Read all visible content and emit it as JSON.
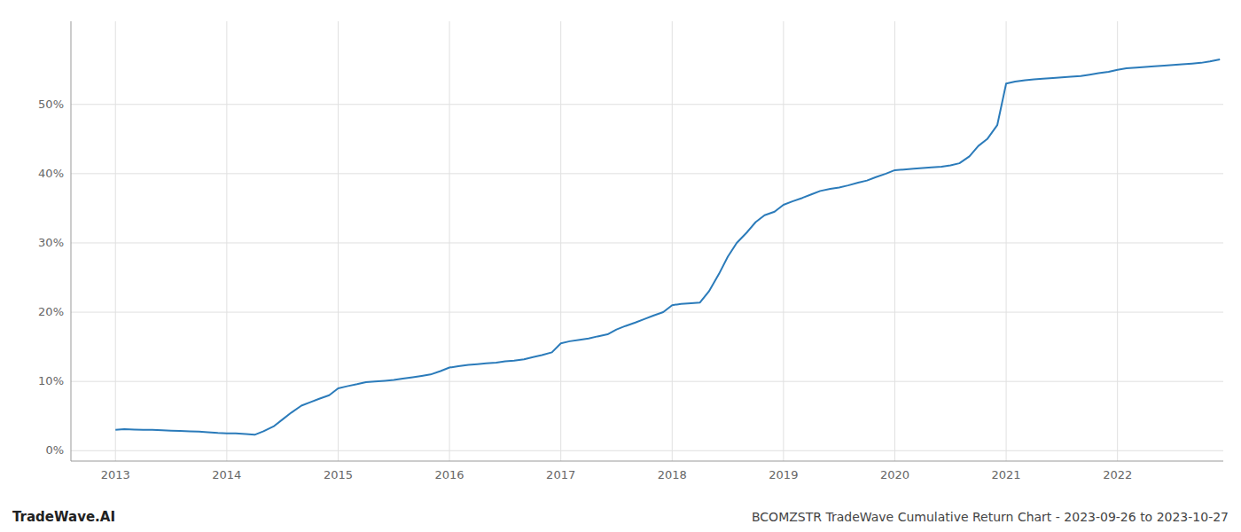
{
  "chart_data": {
    "type": "line",
    "title": "BCOMZSTR TradeWave Cumulative Return Chart - 2023-09-26 to 2023-10-27",
    "annotations": [
      "TradeWave.AI"
    ],
    "color": "#2b7bba",
    "grid": true,
    "x": [
      2013.0,
      2013.08,
      2013.17,
      2013.25,
      2013.33,
      2013.42,
      2013.5,
      2013.58,
      2013.67,
      2013.75,
      2013.83,
      2013.92,
      2014.0,
      2014.08,
      2014.17,
      2014.25,
      2014.33,
      2014.42,
      2014.5,
      2014.58,
      2014.67,
      2014.75,
      2014.83,
      2014.92,
      2015.0,
      2015.08,
      2015.17,
      2015.25,
      2015.33,
      2015.42,
      2015.5,
      2015.58,
      2015.67,
      2015.75,
      2015.83,
      2015.92,
      2016.0,
      2016.08,
      2016.17,
      2016.25,
      2016.33,
      2016.42,
      2016.5,
      2016.58,
      2016.67,
      2016.75,
      2016.83,
      2016.92,
      2017.0,
      2017.08,
      2017.17,
      2017.25,
      2017.33,
      2017.42,
      2017.5,
      2017.58,
      2017.67,
      2017.75,
      2017.83,
      2017.92,
      2018.0,
      2018.08,
      2018.17,
      2018.25,
      2018.33,
      2018.42,
      2018.5,
      2018.58,
      2018.67,
      2018.75,
      2018.83,
      2018.92,
      2019.0,
      2019.08,
      2019.17,
      2019.25,
      2019.33,
      2019.42,
      2019.5,
      2019.58,
      2019.67,
      2019.75,
      2019.83,
      2019.92,
      2020.0,
      2020.08,
      2020.17,
      2020.25,
      2020.33,
      2020.42,
      2020.5,
      2020.58,
      2020.67,
      2020.75,
      2020.83,
      2020.92,
      2021.0,
      2021.08,
      2021.17,
      2021.25,
      2021.33,
      2021.42,
      2021.5,
      2021.58,
      2021.67,
      2021.75,
      2021.83,
      2021.92,
      2022.0,
      2022.08,
      2022.17,
      2022.25,
      2022.33,
      2022.42,
      2022.5,
      2022.58,
      2022.67,
      2022.75,
      2022.83,
      2022.92
    ],
    "values": [
      3.0,
      3.1,
      3.05,
      3.0,
      3.0,
      2.95,
      2.9,
      2.85,
      2.8,
      2.75,
      2.65,
      2.55,
      2.5,
      2.5,
      2.4,
      2.3,
      2.8,
      3.5,
      4.5,
      5.5,
      6.5,
      7.0,
      7.5,
      8.0,
      9.0,
      9.3,
      9.6,
      9.9,
      10.0,
      10.1,
      10.2,
      10.4,
      10.6,
      10.8,
      11.0,
      11.5,
      12.0,
      12.2,
      12.4,
      12.5,
      12.6,
      12.7,
      12.9,
      13.0,
      13.2,
      13.5,
      13.8,
      14.2,
      15.5,
      15.8,
      16.0,
      16.2,
      16.5,
      16.8,
      17.5,
      18.0,
      18.5,
      19.0,
      19.5,
      20.0,
      21.0,
      21.2,
      21.3,
      21.4,
      23.0,
      25.5,
      28.0,
      30.0,
      31.5,
      33.0,
      34.0,
      34.5,
      35.5,
      36.0,
      36.5,
      37.0,
      37.5,
      37.8,
      38.0,
      38.3,
      38.7,
      39.0,
      39.5,
      40.0,
      40.5,
      40.6,
      40.7,
      40.8,
      40.9,
      41.0,
      41.2,
      41.5,
      42.5,
      44.0,
      45.0,
      47.0,
      53.0,
      53.3,
      53.5,
      53.6,
      53.7,
      53.8,
      53.9,
      54.0,
      54.1,
      54.3,
      54.5,
      54.7,
      55.0,
      55.2,
      55.3,
      55.4,
      55.5,
      55.6,
      55.7,
      55.8,
      55.9,
      56.0,
      56.2,
      56.5
    ],
    "xlim": [
      2012.6,
      2022.95
    ],
    "ylim": [
      -1.5,
      62
    ],
    "xticks": [
      2013,
      2014,
      2015,
      2016,
      2017,
      2018,
      2019,
      2020,
      2021,
      2022
    ],
    "yticks": [
      {
        "value": 0,
        "label": "0%"
      },
      {
        "value": 10,
        "label": "10%"
      },
      {
        "value": 20,
        "label": "20%"
      },
      {
        "value": 30,
        "label": "30%"
      },
      {
        "value": 40,
        "label": "40%"
      },
      {
        "value": 50,
        "label": "50%"
      }
    ]
  }
}
